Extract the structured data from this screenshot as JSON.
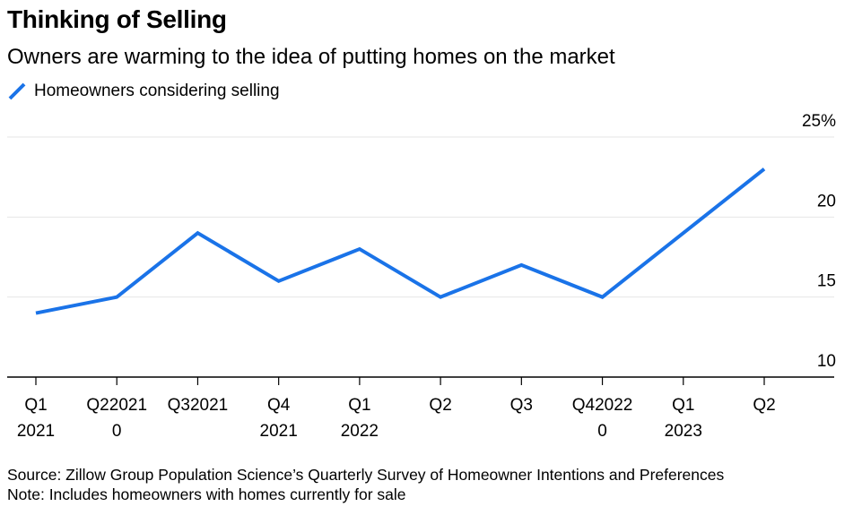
{
  "header": {
    "title": "Thinking of Selling",
    "subtitle": "Owners are warming to the idea of putting homes on the market"
  },
  "footer": {
    "source": "Source: Zillow Group Population Science’s Quarterly Survey of Homeowner Intentions and Preferences",
    "note": "Note: Includes homeowners with homes currently for sale"
  },
  "colors": {
    "series": "#1a73e8",
    "grid": "#e6e6e6",
    "axis": "#000000"
  },
  "chart_data": {
    "type": "line",
    "title": "Thinking of Selling",
    "subtitle": "Owners are warming to the idea of putting homes on the market",
    "xlabel": "",
    "ylabel": "",
    "x_labels": [
      [
        "Q1",
        "2021"
      ],
      [
        "Q22021",
        "0"
      ],
      [
        "Q32021",
        ""
      ],
      [
        "Q4",
        "2021"
      ],
      [
        "Q1",
        "2022"
      ],
      [
        "Q2",
        ""
      ],
      [
        "Q3",
        ""
      ],
      [
        "Q42022",
        "0"
      ],
      [
        "Q1",
        "2023"
      ],
      [
        "Q2",
        ""
      ]
    ],
    "series": [
      {
        "name": "Homeowners considering selling",
        "values": [
          14,
          15,
          19,
          16,
          18,
          15,
          17,
          15,
          19,
          23
        ]
      }
    ],
    "ylim": [
      10,
      25
    ],
    "y_ticks": [
      {
        "value": 25,
        "label": "25%"
      },
      {
        "value": 20,
        "label": "20"
      },
      {
        "value": 15,
        "label": "15"
      },
      {
        "value": 10,
        "label": "10"
      }
    ],
    "grid": true,
    "legend_position": "top-left"
  }
}
